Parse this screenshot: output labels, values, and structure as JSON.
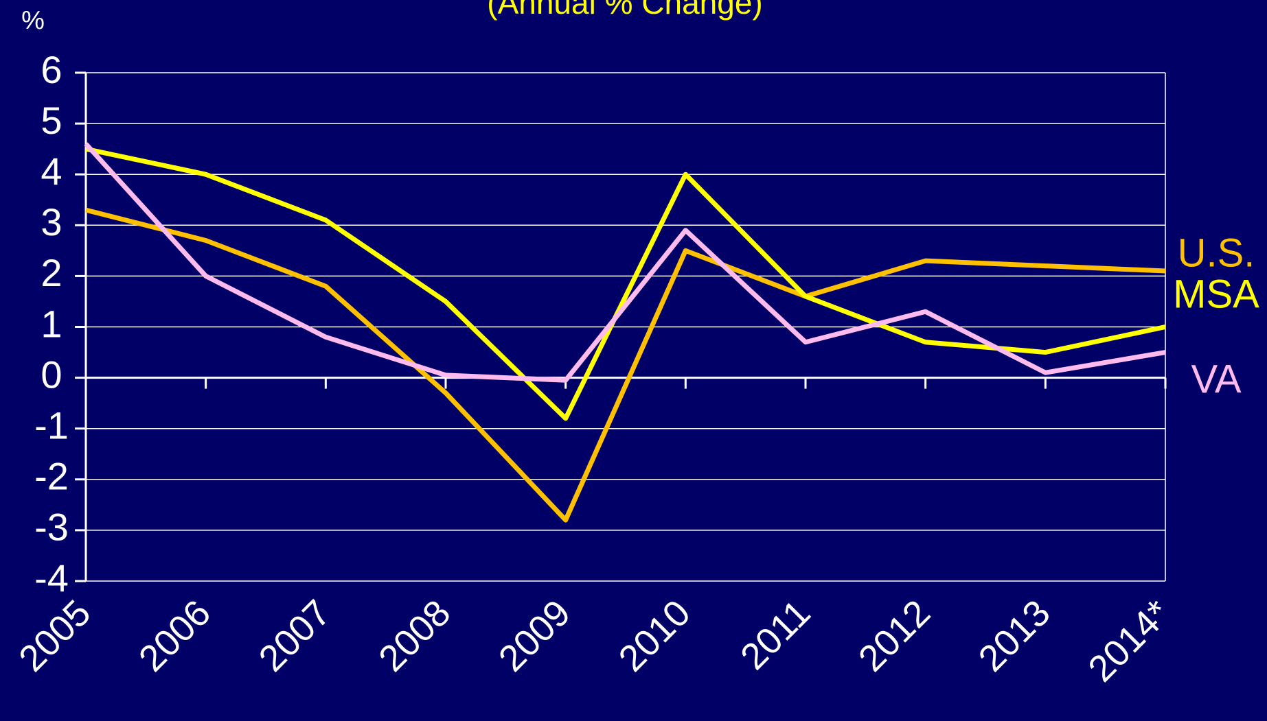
{
  "chart_data": {
    "type": "line",
    "title": "(Annual % Change)",
    "y_label": "%",
    "categories": [
      "2005",
      "2006",
      "2007",
      "2008",
      "2009",
      "2010",
      "2011",
      "2012",
      "2013",
      "2014*"
    ],
    "series": [
      {
        "name": "U.S.",
        "color": "#ffc000",
        "values": [
          3.3,
          2.7,
          1.8,
          -0.3,
          -2.8,
          2.5,
          1.6,
          2.3,
          2.2,
          2.1
        ]
      },
      {
        "name": "MSA",
        "color": "#ffff00",
        "values": [
          4.5,
          4.0,
          3.1,
          1.5,
          -0.8,
          4.0,
          1.6,
          0.7,
          0.5,
          1.0
        ]
      },
      {
        "name": "VA",
        "color": "#ffbbee",
        "values": [
          4.6,
          2.0,
          0.8,
          0.05,
          -0.05,
          2.9,
          0.7,
          1.3,
          0.1,
          0.5
        ]
      }
    ],
    "ylim": [
      -4,
      6
    ],
    "yticks": [
      -4,
      -3,
      -2,
      -1,
      0,
      1,
      2,
      3,
      4,
      5,
      6
    ],
    "grid": true
  }
}
